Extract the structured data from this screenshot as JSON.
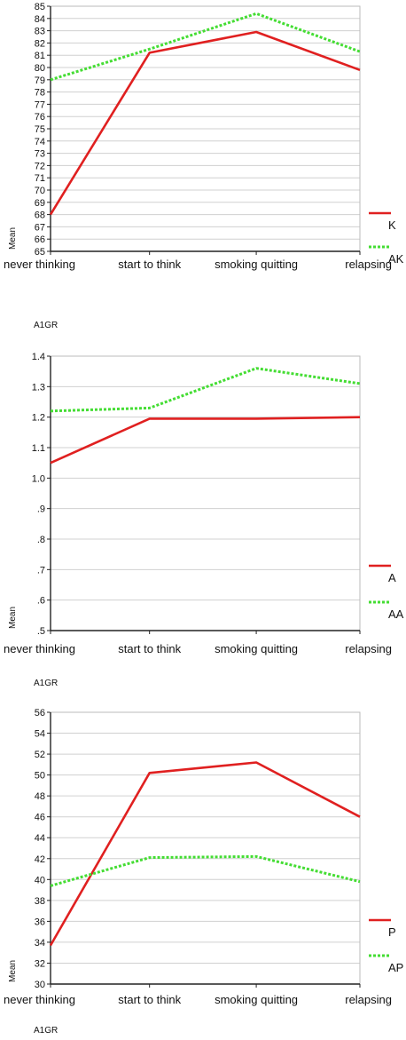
{
  "colors": {
    "series_solid": "#e02020",
    "series_dotted": "#44dd33",
    "grid": "#d0d0d0",
    "axis": "#222222"
  },
  "chart_data": [
    {
      "type": "line",
      "categories": [
        "never thinking",
        "start to think",
        "smoking quitting",
        "relapsing"
      ],
      "ylabel": "Mean",
      "xlabel": "A1GR",
      "ylim": [
        65,
        85
      ],
      "yticks": [
        "65",
        "66",
        "67",
        "68",
        "69",
        "70",
        "71",
        "72",
        "73",
        "74",
        "75",
        "76",
        "77",
        "78",
        "79",
        "80",
        "81",
        "82",
        "83",
        "84",
        "85"
      ],
      "ytick_values": [
        65,
        66,
        67,
        68,
        69,
        70,
        71,
        72,
        73,
        74,
        75,
        76,
        77,
        78,
        79,
        80,
        81,
        82,
        83,
        84,
        85
      ],
      "grid": true,
      "legend_position": "right",
      "series": [
        {
          "name": "K",
          "style": "solid",
          "values": [
            68.0,
            81.2,
            82.9,
            79.8
          ]
        },
        {
          "name": "AK",
          "style": "dotted",
          "values": [
            79.0,
            81.5,
            84.4,
            81.3
          ]
        }
      ]
    },
    {
      "type": "line",
      "categories": [
        "never thinking",
        "start to think",
        "smoking quitting",
        "relapsing"
      ],
      "ylabel": "Mean",
      "xlabel": "A1GR",
      "ylim": [
        0.5,
        1.4
      ],
      "yticks": [
        ".5",
        ".6",
        ".7",
        ".8",
        ".9",
        "1.0",
        "1.1",
        "1.2",
        "1.3",
        "1.4"
      ],
      "ytick_values": [
        0.5,
        0.6,
        0.7,
        0.8,
        0.9,
        1.0,
        1.1,
        1.2,
        1.3,
        1.4
      ],
      "grid": true,
      "legend_position": "right",
      "series": [
        {
          "name": "A",
          "style": "solid",
          "values": [
            1.05,
            1.195,
            1.195,
            1.2
          ]
        },
        {
          "name": "AA",
          "style": "dotted",
          "values": [
            1.22,
            1.23,
            1.36,
            1.31
          ]
        }
      ]
    },
    {
      "type": "line",
      "categories": [
        "never thinking",
        "start to think",
        "smoking quitting",
        "relapsing"
      ],
      "ylabel": "Mean",
      "xlabel": "A1GR",
      "ylim": [
        30,
        56
      ],
      "yticks": [
        "30",
        "32",
        "34",
        "36",
        "38",
        "40",
        "42",
        "44",
        "46",
        "48",
        "50",
        "52",
        "54",
        "56"
      ],
      "ytick_values": [
        30,
        32,
        34,
        36,
        38,
        40,
        42,
        44,
        46,
        48,
        50,
        52,
        54,
        56
      ],
      "grid": true,
      "legend_position": "right",
      "series": [
        {
          "name": "P",
          "style": "solid",
          "values": [
            33.7,
            50.2,
            51.2,
            46.0
          ]
        },
        {
          "name": "AP",
          "style": "dotted",
          "values": [
            39.4,
            42.1,
            42.2,
            39.8
          ]
        }
      ]
    }
  ]
}
